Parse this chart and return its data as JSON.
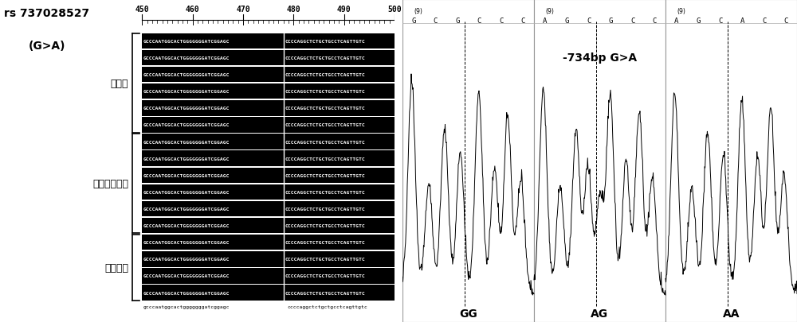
{
  "title_snp": "rs 737028527",
  "title_mutation": "(G>A)",
  "label_breed1": "百日鸡",
  "label_breed2": "隐性白洛克鸡",
  "label_breed3": "新杨褐鸡",
  "seq_ruler_ticks": [
    450,
    460,
    470,
    480,
    490,
    500
  ],
  "seq_left": "GCCCAATGGCACTGGGGGGGATCGGAGC",
  "seq_right": "CCCCAGGCTCTGCTGCCTCAGTTGTC",
  "seq_lower": "gcccaatggcactgggggggatcggagc",
  "seq_lower_right": "ccccaggctctgctgcctcagttgtc",
  "n_rows": 16,
  "n_rows_breed1": 6,
  "n_rows_breed2": 6,
  "n_rows_breed3": 4,
  "annotation_text": "-734bp G>A",
  "label_GG": "GG",
  "label_AG": "AG",
  "label_AA": "AA",
  "bases_GG": [
    "G",
    "C",
    "G",
    "C",
    "C",
    "C"
  ],
  "bases_AG": [
    "A",
    "G",
    "C",
    "G",
    "C",
    "C"
  ],
  "bases_AA": [
    "A",
    "G",
    "C",
    "A",
    "C",
    "C"
  ],
  "panel_bg": "#ffffff"
}
